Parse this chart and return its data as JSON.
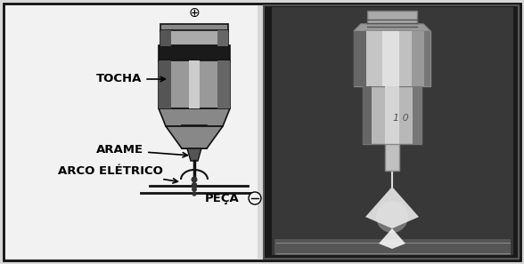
{
  "bg_color": "#d8d8d8",
  "border_color": "#111111",
  "labels": {
    "tocha": "TOCHA",
    "arame": "ARAME",
    "arco": "ARCO ELÉTRICO",
    "peca": "PEÇA",
    "plus": "⊕",
    "minus": "⊖"
  },
  "figsize": [
    5.88,
    2.97
  ],
  "dpi": 100
}
